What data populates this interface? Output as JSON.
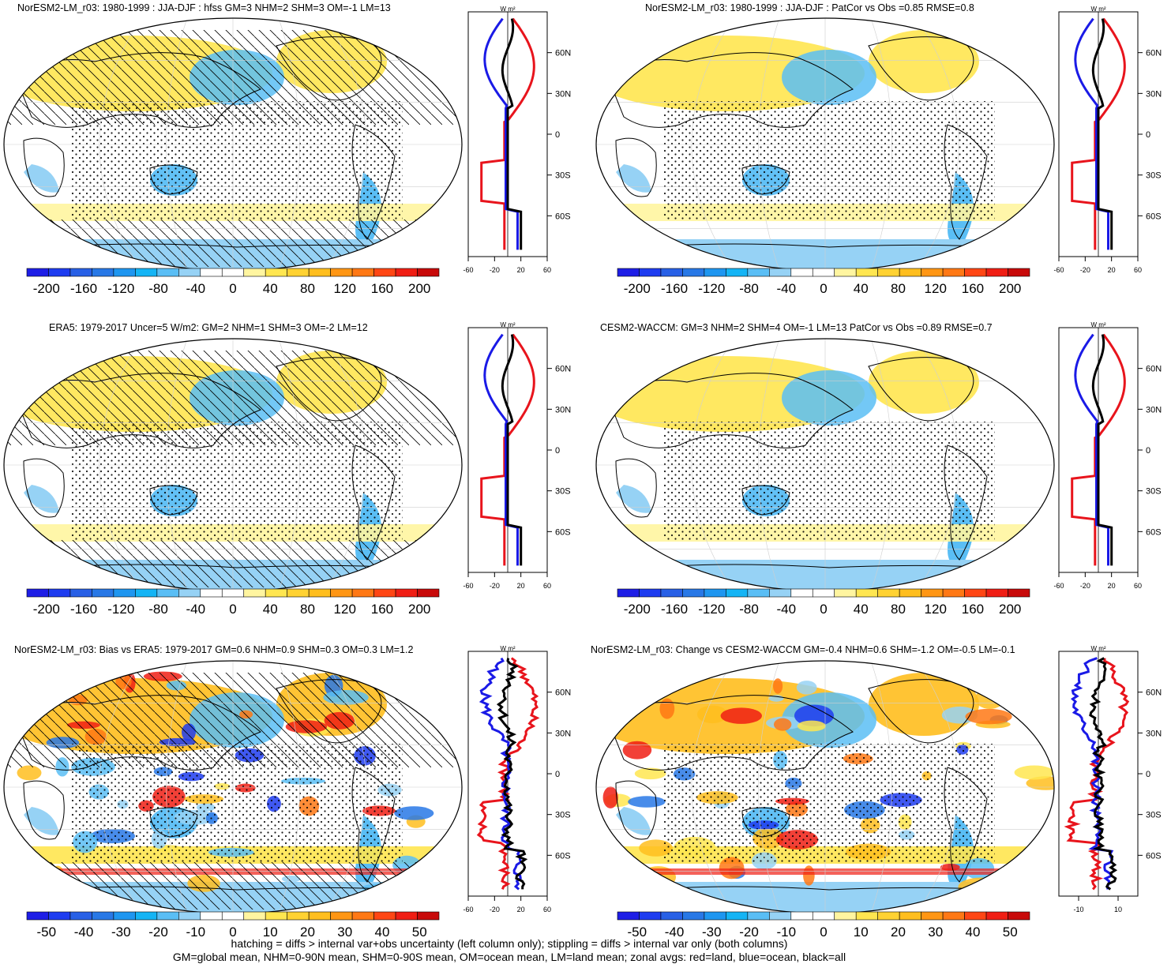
{
  "footer": {
    "line1": "hatching = diffs > internal var+obs uncertainty (left column only); stippling = diffs > internal var only (both columns)",
    "line2": "GM=global mean, NHM=0-90N mean, SHM=0-90S mean, OM=ocean mean, LM=land mean; zonal avgs: red=land, blue=ocean, black=all"
  },
  "colors": {
    "land_line": "#e8141c",
    "ocean_line": "#1a1ae6",
    "all_line": "#000000"
  },
  "units_label": "W m²",
  "chart_data": [
    {
      "type": "heatmap",
      "title": "NorESM2-LM_r03: 1980-1999 : JJA-DJF : hfss GM=3 NHM=2 SHM=3 OM=-1 LM=13",
      "colorbar_ticks": [
        "-200",
        "-160",
        "-120",
        "-80",
        "-40",
        "0",
        "40",
        "80",
        "120",
        "160",
        "200"
      ],
      "zonal_xticks": [
        "-60",
        "-20",
        "20",
        "60"
      ],
      "zonal_xlim": [
        -60,
        60
      ],
      "zonal_yticks": [
        "60N",
        "30N",
        "0",
        "30S",
        "60S"
      ],
      "hatching": true
    },
    {
      "type": "heatmap",
      "title": "NorESM2-LM_r03: 1980-1999 : JJA-DJF : PatCor vs Obs =0.85 RMSE=0.8",
      "colorbar_ticks": [
        "-200",
        "-160",
        "-120",
        "-80",
        "-40",
        "0",
        "40",
        "80",
        "120",
        "160",
        "200"
      ],
      "zonal_xticks": [
        "-60",
        "-20",
        "20",
        "60"
      ],
      "zonal_xlim": [
        -60,
        60
      ],
      "zonal_yticks": [
        "60N",
        "30N",
        "0",
        "30S",
        "60S"
      ],
      "hatching": false
    },
    {
      "type": "heatmap",
      "title": "ERA5: 1979-2017 Uncer=5 W/m2: GM=2 NHM=1 SHM=3 OM=-2 LM=12",
      "colorbar_ticks": [
        "-200",
        "-160",
        "-120",
        "-80",
        "-40",
        "0",
        "40",
        "80",
        "120",
        "160",
        "200"
      ],
      "zonal_xticks": [
        "-60",
        "-20",
        "20",
        "60"
      ],
      "zonal_xlim": [
        -60,
        60
      ],
      "zonal_yticks": [
        "60N",
        "30N",
        "0",
        "30S",
        "60S"
      ],
      "hatching": true
    },
    {
      "type": "heatmap",
      "title": "CESM2-WACCM: GM=3 NHM=2 SHM=4 OM=-1 LM=13 PatCor vs Obs =0.89 RMSE=0.7",
      "colorbar_ticks": [
        "-200",
        "-160",
        "-120",
        "-80",
        "-40",
        "0",
        "40",
        "80",
        "120",
        "160",
        "200"
      ],
      "zonal_xticks": [
        "-60",
        "-20",
        "20",
        "60"
      ],
      "zonal_xlim": [
        -60,
        60
      ],
      "zonal_yticks": [
        "60N",
        "30N",
        "0",
        "30S",
        "60S"
      ],
      "hatching": false
    },
    {
      "type": "heatmap",
      "title": "NorESM2-LM_r03: Bias vs ERA5: 1979-2017 GM=0.6 NHM=0.9 SHM=0.3 OM=0.3 LM=1.2",
      "colorbar_ticks": [
        "-50",
        "-40",
        "-30",
        "-20",
        "-10",
        "0",
        "10",
        "20",
        "30",
        "40",
        "50"
      ],
      "zonal_xticks": [
        "-60",
        "-20",
        "20",
        "60"
      ],
      "zonal_xlim": [
        -60,
        60
      ],
      "zonal_yticks": [
        "60N",
        "30N",
        "0",
        "30S",
        "60S"
      ],
      "hatching": true
    },
    {
      "type": "heatmap",
      "title": "NorESM2-LM_r03: Change vs CESM2-WACCM GM=-0.4 NHM=0.6 SHM=-1.2 OM=-0.5 LM=-0.1",
      "colorbar_ticks": [
        "-50",
        "-40",
        "-30",
        "-20",
        "-10",
        "0",
        "10",
        "20",
        "30",
        "40",
        "50"
      ],
      "zonal_xticks": [
        "-10",
        "10"
      ],
      "zonal_xlim": [
        -20,
        20
      ],
      "zonal_yticks": [
        "60N",
        "30N",
        "0",
        "30S",
        "60S"
      ],
      "hatching": false
    }
  ]
}
